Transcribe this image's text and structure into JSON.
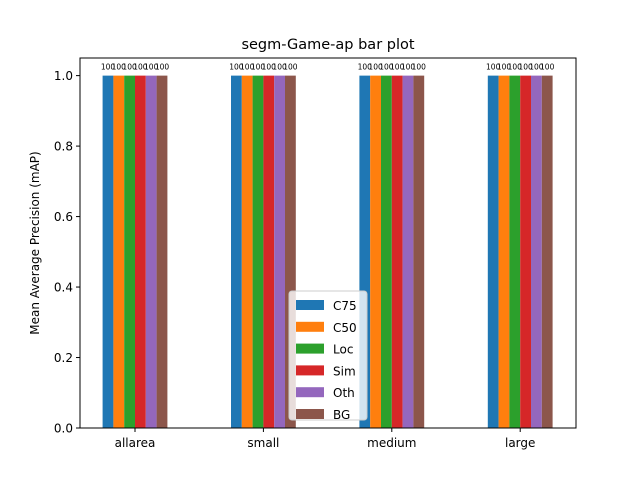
{
  "chart_data": {
    "type": "bar",
    "title": "segm-Game-ap bar plot",
    "xlabel": "",
    "ylabel": "Mean Average Precision (mAP)",
    "ylim": [
      0,
      1.05
    ],
    "yticks": [
      "0.0",
      "0.2",
      "0.4",
      "0.6",
      "0.8",
      "1.0"
    ],
    "categories": [
      "allarea",
      "small",
      "medium",
      "large"
    ],
    "series": [
      {
        "name": "C75",
        "values": [
          1.0,
          1.0,
          1.0,
          1.0
        ],
        "labels": [
          "100",
          "100",
          "100",
          "100"
        ],
        "color": "#1f77b4"
      },
      {
        "name": "C50",
        "values": [
          1.0,
          1.0,
          1.0,
          1.0
        ],
        "labels": [
          "100",
          "100",
          "100",
          "100"
        ],
        "color": "#ff7f0e"
      },
      {
        "name": "Loc",
        "values": [
          1.0,
          1.0,
          1.0,
          1.0
        ],
        "labels": [
          "100",
          "100",
          "100",
          "100"
        ],
        "color": "#2ca02c"
      },
      {
        "name": "Sim",
        "values": [
          1.0,
          1.0,
          1.0,
          1.0
        ],
        "labels": [
          "100",
          "100",
          "100",
          "100"
        ],
        "color": "#d62728"
      },
      {
        "name": "Oth",
        "values": [
          1.0,
          1.0,
          1.0,
          1.0
        ],
        "labels": [
          "100",
          "100",
          "100",
          "100"
        ],
        "color": "#9467bd"
      },
      {
        "name": "BG",
        "values": [
          1.0,
          1.0,
          1.0,
          1.0
        ],
        "labels": [
          "100",
          "100",
          "100",
          "100"
        ],
        "color": "#8c564b"
      }
    ],
    "legend": "bottom-center",
    "grid": false
  }
}
